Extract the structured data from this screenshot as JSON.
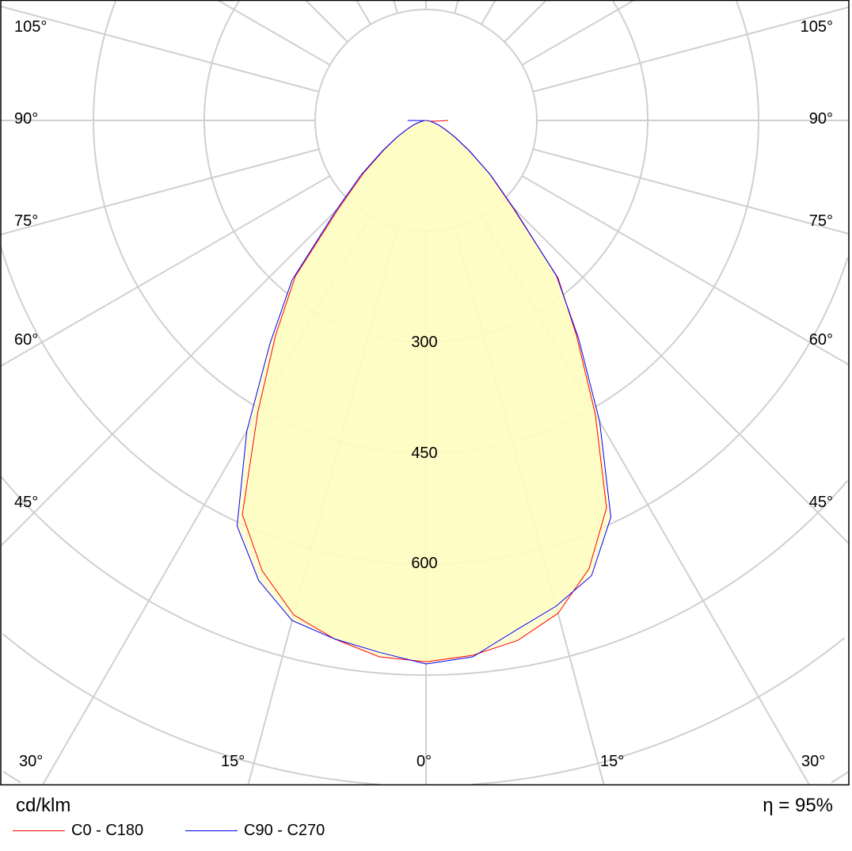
{
  "chart_data": {
    "type": "polar",
    "unit_label": "cd/klm",
    "efficiency_label": "η = 95%",
    "ring_values": [
      150,
      300,
      450,
      600,
      750,
      900,
      1050
    ],
    "ring_labels": [
      "300",
      "450",
      "600"
    ],
    "angle_labels_left": [
      "105°",
      "90°",
      "75°",
      "60°",
      "45°"
    ],
    "angle_labels_right": [
      "105°",
      "90°",
      "75°",
      "60°",
      "45°"
    ],
    "angle_labels_bottom": [
      "30°",
      "15°",
      "0°",
      "15°",
      "30°"
    ],
    "angles": [
      -90,
      -85,
      -80,
      -75,
      -70,
      -65,
      -60,
      -55,
      -50,
      -45,
      -40,
      -35,
      -30,
      -25,
      -20,
      -15,
      -10,
      -5,
      0,
      5,
      10,
      15,
      20,
      25,
      30,
      35,
      40,
      45,
      50,
      55,
      60,
      65,
      70,
      75,
      80,
      85,
      90
    ],
    "series": [
      {
        "name": "C0 - C180",
        "color": "#ff0000",
        "values": [
          0,
          2,
          5,
          10,
          18,
          28,
          45,
          70,
          110,
          165,
          275,
          355,
          455,
          588,
          648,
          692,
          712,
          728,
          732,
          726,
          714,
          690,
          645,
          578,
          458,
          355,
          278,
          165,
          112,
          72,
          46,
          29,
          18,
          11,
          6,
          12,
          30
        ]
      },
      {
        "name": "C90 - C270",
        "color": "#0000ff",
        "values": [
          25,
          2,
          5,
          10,
          18,
          28,
          46,
          72,
          115,
          172,
          282,
          368,
          485,
          605,
          662,
          700,
          712,
          722,
          735,
          728,
          700,
          680,
          655,
          592,
          470,
          360,
          275,
          168,
          113,
          71,
          45,
          28,
          18,
          10,
          5,
          2,
          0
        ]
      }
    ],
    "fill_color": "#fffcc0",
    "grid_color": "#d0d0d0"
  }
}
